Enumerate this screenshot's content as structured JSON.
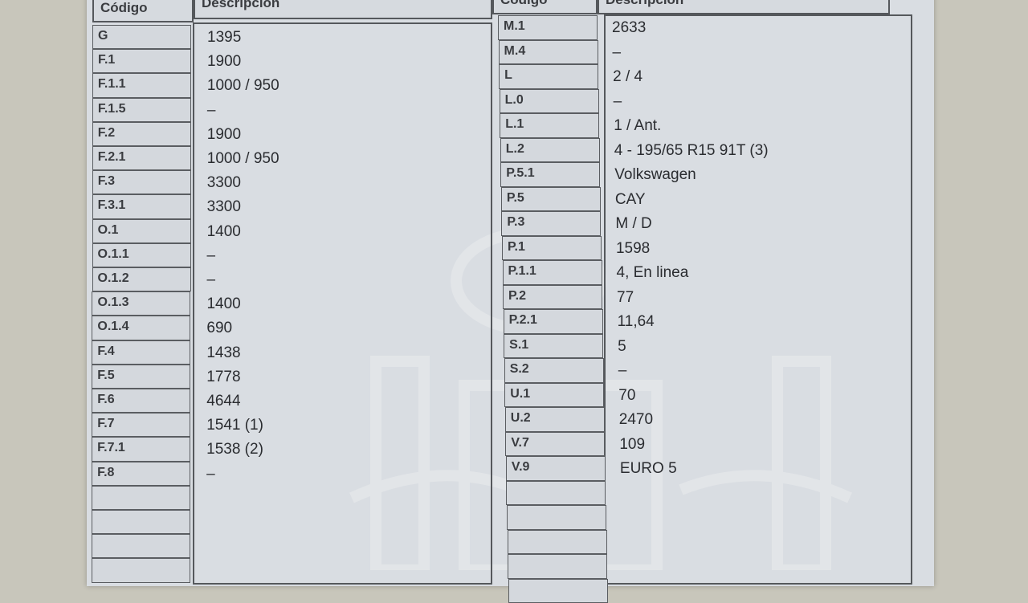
{
  "left_table": {
    "header_code": "Código",
    "header_desc": "Descripción",
    "rows": [
      {
        "code": "G",
        "value": "1395"
      },
      {
        "code": "F.1",
        "value": "1900"
      },
      {
        "code": "F.1.1",
        "value": "1000 / 950"
      },
      {
        "code": "F.1.5",
        "value": "–"
      },
      {
        "code": "F.2",
        "value": "1900"
      },
      {
        "code": "F.2.1",
        "value": "1000 / 950"
      },
      {
        "code": "F.3",
        "value": "3300"
      },
      {
        "code": "F.3.1",
        "value": "3300"
      },
      {
        "code": "O.1",
        "value": "1400"
      },
      {
        "code": "O.1.1",
        "value": "–"
      },
      {
        "code": "O.1.2",
        "value": "–"
      },
      {
        "code": "O.1.3",
        "value": "1400"
      },
      {
        "code": "O.1.4",
        "value": "690"
      },
      {
        "code": "F.4",
        "value": "1438"
      },
      {
        "code": "F.5",
        "value": "1778"
      },
      {
        "code": "F.6",
        "value": "4644"
      },
      {
        "code": "F.7",
        "value": "1541 (1)"
      },
      {
        "code": "F.7.1",
        "value": "1538 (2)"
      },
      {
        "code": "F.8",
        "value": "–"
      },
      {
        "code": "",
        "value": ""
      },
      {
        "code": "",
        "value": ""
      },
      {
        "code": "",
        "value": ""
      },
      {
        "code": "",
        "value": ""
      }
    ]
  },
  "right_table": {
    "header_code": "Código",
    "header_desc": "Descripción",
    "rows": [
      {
        "code": "M.1",
        "value": "2633"
      },
      {
        "code": "M.4",
        "value": "–"
      },
      {
        "code": "L",
        "value": "2 / 4"
      },
      {
        "code": "L.0",
        "value": "–"
      },
      {
        "code": "L.1",
        "value": "1 / Ant."
      },
      {
        "code": "L.2",
        "value": "4 - 195/65 R15 91T (3)"
      },
      {
        "code": "P.5.1",
        "value": "Volkswagen"
      },
      {
        "code": "P.5",
        "value": "CAY"
      },
      {
        "code": "P.3",
        "value": "M / D"
      },
      {
        "code": "P.1",
        "value": "1598"
      },
      {
        "code": "P.1.1",
        "value": "4, En linea"
      },
      {
        "code": "P.2",
        "value": "77"
      },
      {
        "code": "P.2.1",
        "value": "11,64"
      },
      {
        "code": "S.1",
        "value": "5"
      },
      {
        "code": "S.2",
        "value": "–"
      },
      {
        "code": "U.1",
        "value": "70"
      },
      {
        "code": "U.2",
        "value": "2470"
      },
      {
        "code": "V.7",
        "value": "109"
      },
      {
        "code": "V.9",
        "value": "EURO 5"
      },
      {
        "code": "",
        "value": ""
      },
      {
        "code": "",
        "value": ""
      },
      {
        "code": "",
        "value": ""
      },
      {
        "code": "",
        "value": ""
      },
      {
        "code": "",
        "value": ""
      }
    ]
  }
}
